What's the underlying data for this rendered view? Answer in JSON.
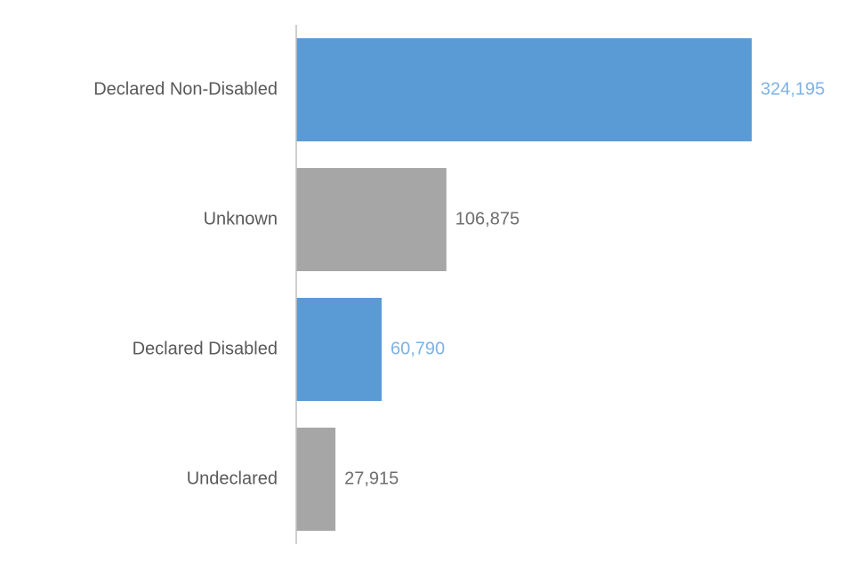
{
  "chart_data": {
    "type": "bar",
    "orientation": "horizontal",
    "categories": [
      "Declared Non-Disabled",
      "Unknown",
      "Declared Disabled",
      "Undeclared"
    ],
    "values": [
      324195,
      106875,
      60790,
      27915
    ],
    "value_labels": [
      "324,195",
      "106,875",
      "60,790",
      "27,915"
    ],
    "bar_colors": [
      "#5b9bd5",
      "#a6a6a6",
      "#5b9bd5",
      "#a6a6a6"
    ],
    "label_colors": [
      "#7fb2e3",
      "#6e6e6e",
      "#7fb2e3",
      "#6e6e6e"
    ],
    "xlim": [
      0,
      324195
    ],
    "grid": false,
    "legend": "none",
    "title": "",
    "xlabel": "",
    "ylabel": ""
  }
}
